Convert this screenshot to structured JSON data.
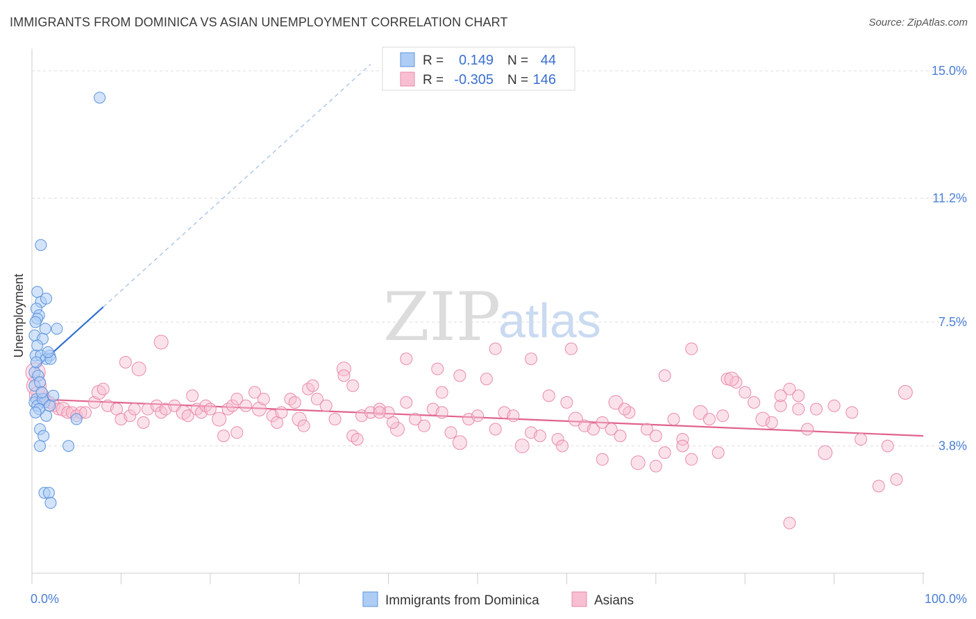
{
  "header": {
    "title": "IMMIGRANTS FROM DOMINICA VS ASIAN UNEMPLOYMENT CORRELATION CHART",
    "source": "Source: ZipAtlas.com"
  },
  "watermark": {
    "zip": "ZIP",
    "atlas": "atlas"
  },
  "colors": {
    "dominica_fill": "#aecdf5",
    "dominica_stroke": "#5b92dc",
    "dominica_line": "#2f6fcf",
    "asian_fill": "#f7bfd1",
    "asian_stroke": "#e98aa9",
    "asian_line": "#e0628d",
    "grid": "#dddddd",
    "axis_label": "#4a7fd6"
  },
  "legend_box": {
    "row1": {
      "r_label": "R =",
      "r_value": "0.149",
      "n_label": "N =",
      "n_value": "44"
    },
    "row2": {
      "r_label": "R =",
      "r_value": "-0.305",
      "n_label": "N =",
      "n_value": "146"
    }
  },
  "chart_data": {
    "type": "scatter",
    "title": "IMMIGRANTS FROM DOMINICA VS ASIAN UNEMPLOYMENT CORRELATION CHART",
    "xlabel": "",
    "ylabel": "Unemployment",
    "xlim": [
      0,
      100
    ],
    "ylim": [
      0,
      15.5
    ],
    "x_tick_labels": [
      "0.0%",
      "100.0%"
    ],
    "y_ticks": [
      3.8,
      7.5,
      11.2,
      15.0
    ],
    "y_tick_labels": [
      "3.8%",
      "7.5%",
      "11.2%",
      "15.0%"
    ],
    "grid": "horizontal dashed",
    "legend_position": "bottom-center",
    "series": [
      {
        "name": "Immigrants from Dominica",
        "r": 0.149,
        "n": 44,
        "trend": {
          "x0": 0.3,
          "y0": 6.1,
          "x1": 8.0,
          "y1": 7.95,
          "dashed_to_x": 38.0,
          "dashed_to_y": 15.2
        },
        "points": [
          [
            7.6,
            14.2
          ],
          [
            1.0,
            9.8
          ],
          [
            0.6,
            8.4
          ],
          [
            1.0,
            8.1
          ],
          [
            1.6,
            8.2
          ],
          [
            0.5,
            7.9
          ],
          [
            0.8,
            7.7
          ],
          [
            0.6,
            7.6
          ],
          [
            0.4,
            7.5
          ],
          [
            1.5,
            7.3
          ],
          [
            2.8,
            7.3
          ],
          [
            0.3,
            7.1
          ],
          [
            1.2,
            7.0
          ],
          [
            0.6,
            6.8
          ],
          [
            0.4,
            6.5
          ],
          [
            1.0,
            6.5
          ],
          [
            2.0,
            6.5
          ],
          [
            1.6,
            6.4
          ],
          [
            2.1,
            6.4
          ],
          [
            0.3,
            6.0
          ],
          [
            0.7,
            5.9
          ],
          [
            0.3,
            5.6
          ],
          [
            0.9,
            5.7
          ],
          [
            0.5,
            5.2
          ],
          [
            1.4,
            5.1
          ],
          [
            0.3,
            5.1
          ],
          [
            0.6,
            5.0
          ],
          [
            1.6,
            4.7
          ],
          [
            5.0,
            4.6
          ],
          [
            0.9,
            4.3
          ],
          [
            1.3,
            4.1
          ],
          [
            0.9,
            3.8
          ],
          [
            4.1,
            3.8
          ],
          [
            1.4,
            2.4
          ],
          [
            1.9,
            2.4
          ],
          [
            2.1,
            2.1
          ],
          [
            1.2,
            5.2
          ],
          [
            2.0,
            5.0
          ],
          [
            0.8,
            4.9
          ],
          [
            1.8,
            6.6
          ],
          [
            0.5,
            6.3
          ],
          [
            1.1,
            5.4
          ],
          [
            0.4,
            4.8
          ],
          [
            2.4,
            5.3
          ]
        ]
      },
      {
        "name": "Asians",
        "r": -0.305,
        "n": 146,
        "trend": {
          "x0": 0.3,
          "y0": 5.2,
          "x1": 100.0,
          "y1": 4.1
        },
        "points": [
          [
            0.4,
            6.0
          ],
          [
            0.5,
            5.6
          ],
          [
            0.8,
            5.3
          ],
          [
            1.5,
            5.2
          ],
          [
            2.0,
            5.1
          ],
          [
            2.5,
            5.0
          ],
          [
            3.0,
            4.9
          ],
          [
            3.5,
            4.9
          ],
          [
            4.0,
            4.8
          ],
          [
            4.5,
            4.8
          ],
          [
            5.0,
            4.7
          ],
          [
            5.5,
            4.8
          ],
          [
            6.0,
            4.8
          ],
          [
            7.0,
            5.1
          ],
          [
            7.5,
            5.4
          ],
          [
            8.0,
            5.5
          ],
          [
            8.5,
            5.0
          ],
          [
            9.5,
            4.9
          ],
          [
            10.0,
            4.6
          ],
          [
            11.0,
            4.7
          ],
          [
            11.5,
            4.9
          ],
          [
            12.0,
            6.1
          ],
          [
            12.5,
            4.5
          ],
          [
            13.0,
            4.9
          ],
          [
            14.0,
            5.0
          ],
          [
            14.5,
            4.8
          ],
          [
            15.0,
            4.9
          ],
          [
            16.0,
            5.0
          ],
          [
            17.0,
            4.8
          ],
          [
            17.5,
            4.7
          ],
          [
            18.0,
            5.3
          ],
          [
            18.5,
            4.9
          ],
          [
            19.0,
            4.8
          ],
          [
            19.5,
            5.0
          ],
          [
            20.0,
            4.9
          ],
          [
            21.0,
            4.6
          ],
          [
            21.5,
            4.1
          ],
          [
            22.0,
            4.9
          ],
          [
            22.5,
            5.0
          ],
          [
            23.0,
            5.2
          ],
          [
            24.0,
            5.0
          ],
          [
            25.0,
            5.4
          ],
          [
            25.5,
            4.9
          ],
          [
            26.0,
            5.2
          ],
          [
            27.0,
            4.7
          ],
          [
            27.5,
            4.5
          ],
          [
            28.0,
            4.8
          ],
          [
            29.0,
            5.2
          ],
          [
            29.5,
            5.1
          ],
          [
            30.0,
            4.6
          ],
          [
            30.5,
            4.4
          ],
          [
            31.0,
            5.5
          ],
          [
            31.5,
            5.6
          ],
          [
            32.0,
            5.2
          ],
          [
            33.0,
            5.0
          ],
          [
            34.0,
            4.6
          ],
          [
            35.0,
            6.1
          ],
          [
            36.0,
            4.1
          ],
          [
            36.5,
            4.0
          ],
          [
            37.0,
            4.7
          ],
          [
            38.0,
            4.8
          ],
          [
            39.0,
            4.9
          ],
          [
            40.0,
            4.8
          ],
          [
            41.0,
            4.3
          ],
          [
            42.0,
            5.1
          ],
          [
            43.0,
            4.6
          ],
          [
            44.0,
            4.4
          ],
          [
            45.0,
            4.9
          ],
          [
            46.0,
            4.8
          ],
          [
            47.0,
            4.2
          ],
          [
            48.0,
            3.9
          ],
          [
            49.0,
            4.6
          ],
          [
            50.0,
            4.7
          ],
          [
            51.0,
            5.8
          ],
          [
            52.0,
            4.3
          ],
          [
            53.0,
            4.8
          ],
          [
            54.0,
            4.7
          ],
          [
            55.0,
            3.8
          ],
          [
            56.0,
            4.2
          ],
          [
            57.0,
            4.1
          ],
          [
            58.0,
            5.3
          ],
          [
            59.0,
            4.0
          ],
          [
            59.5,
            3.8
          ],
          [
            60.0,
            5.1
          ],
          [
            61.0,
            4.6
          ],
          [
            62.0,
            4.4
          ],
          [
            63.0,
            4.3
          ],
          [
            64.0,
            4.5
          ],
          [
            65.0,
            4.3
          ],
          [
            66.0,
            4.1
          ],
          [
            67.0,
            4.8
          ],
          [
            68.0,
            3.3
          ],
          [
            69.0,
            4.3
          ],
          [
            70.0,
            4.1
          ],
          [
            71.0,
            3.6
          ],
          [
            72.0,
            4.6
          ],
          [
            73.0,
            4.0
          ],
          [
            74.0,
            3.4
          ],
          [
            75.0,
            4.8
          ],
          [
            76.0,
            4.6
          ],
          [
            77.0,
            3.6
          ],
          [
            78.0,
            5.8
          ],
          [
            79.0,
            5.7
          ],
          [
            80.0,
            5.4
          ],
          [
            81.0,
            5.1
          ],
          [
            82.0,
            4.6
          ],
          [
            83.0,
            4.5
          ],
          [
            84.0,
            5.0
          ],
          [
            85.0,
            5.5
          ],
          [
            86.0,
            4.9
          ],
          [
            87.0,
            4.3
          ],
          [
            88.0,
            4.9
          ],
          [
            89.0,
            3.6
          ],
          [
            90.0,
            5.0
          ],
          [
            92.0,
            4.8
          ],
          [
            93.0,
            4.0
          ],
          [
            95.0,
            2.6
          ],
          [
            96.0,
            3.8
          ],
          [
            97.0,
            2.8
          ],
          [
            98.0,
            5.4
          ],
          [
            42.0,
            6.4
          ],
          [
            45.5,
            6.1
          ],
          [
            52.0,
            6.7
          ],
          [
            56.0,
            6.4
          ],
          [
            60.5,
            6.7
          ],
          [
            74.0,
            6.7
          ],
          [
            78.5,
            5.8
          ],
          [
            86.0,
            5.3
          ],
          [
            46.0,
            5.4
          ],
          [
            48.0,
            5.9
          ],
          [
            35.0,
            5.9
          ],
          [
            36.0,
            5.6
          ],
          [
            10.5,
            6.3
          ],
          [
            14.5,
            6.9
          ],
          [
            23.0,
            4.2
          ],
          [
            39.0,
            4.8
          ],
          [
            64.0,
            3.4
          ],
          [
            70.0,
            3.2
          ],
          [
            73.0,
            3.8
          ],
          [
            77.5,
            4.7
          ],
          [
            65.5,
            5.1
          ],
          [
            66.5,
            4.9
          ],
          [
            40.5,
            4.5
          ],
          [
            85.0,
            1.5
          ],
          [
            84.0,
            5.3
          ],
          [
            71.0,
            5.9
          ]
        ]
      }
    ]
  }
}
